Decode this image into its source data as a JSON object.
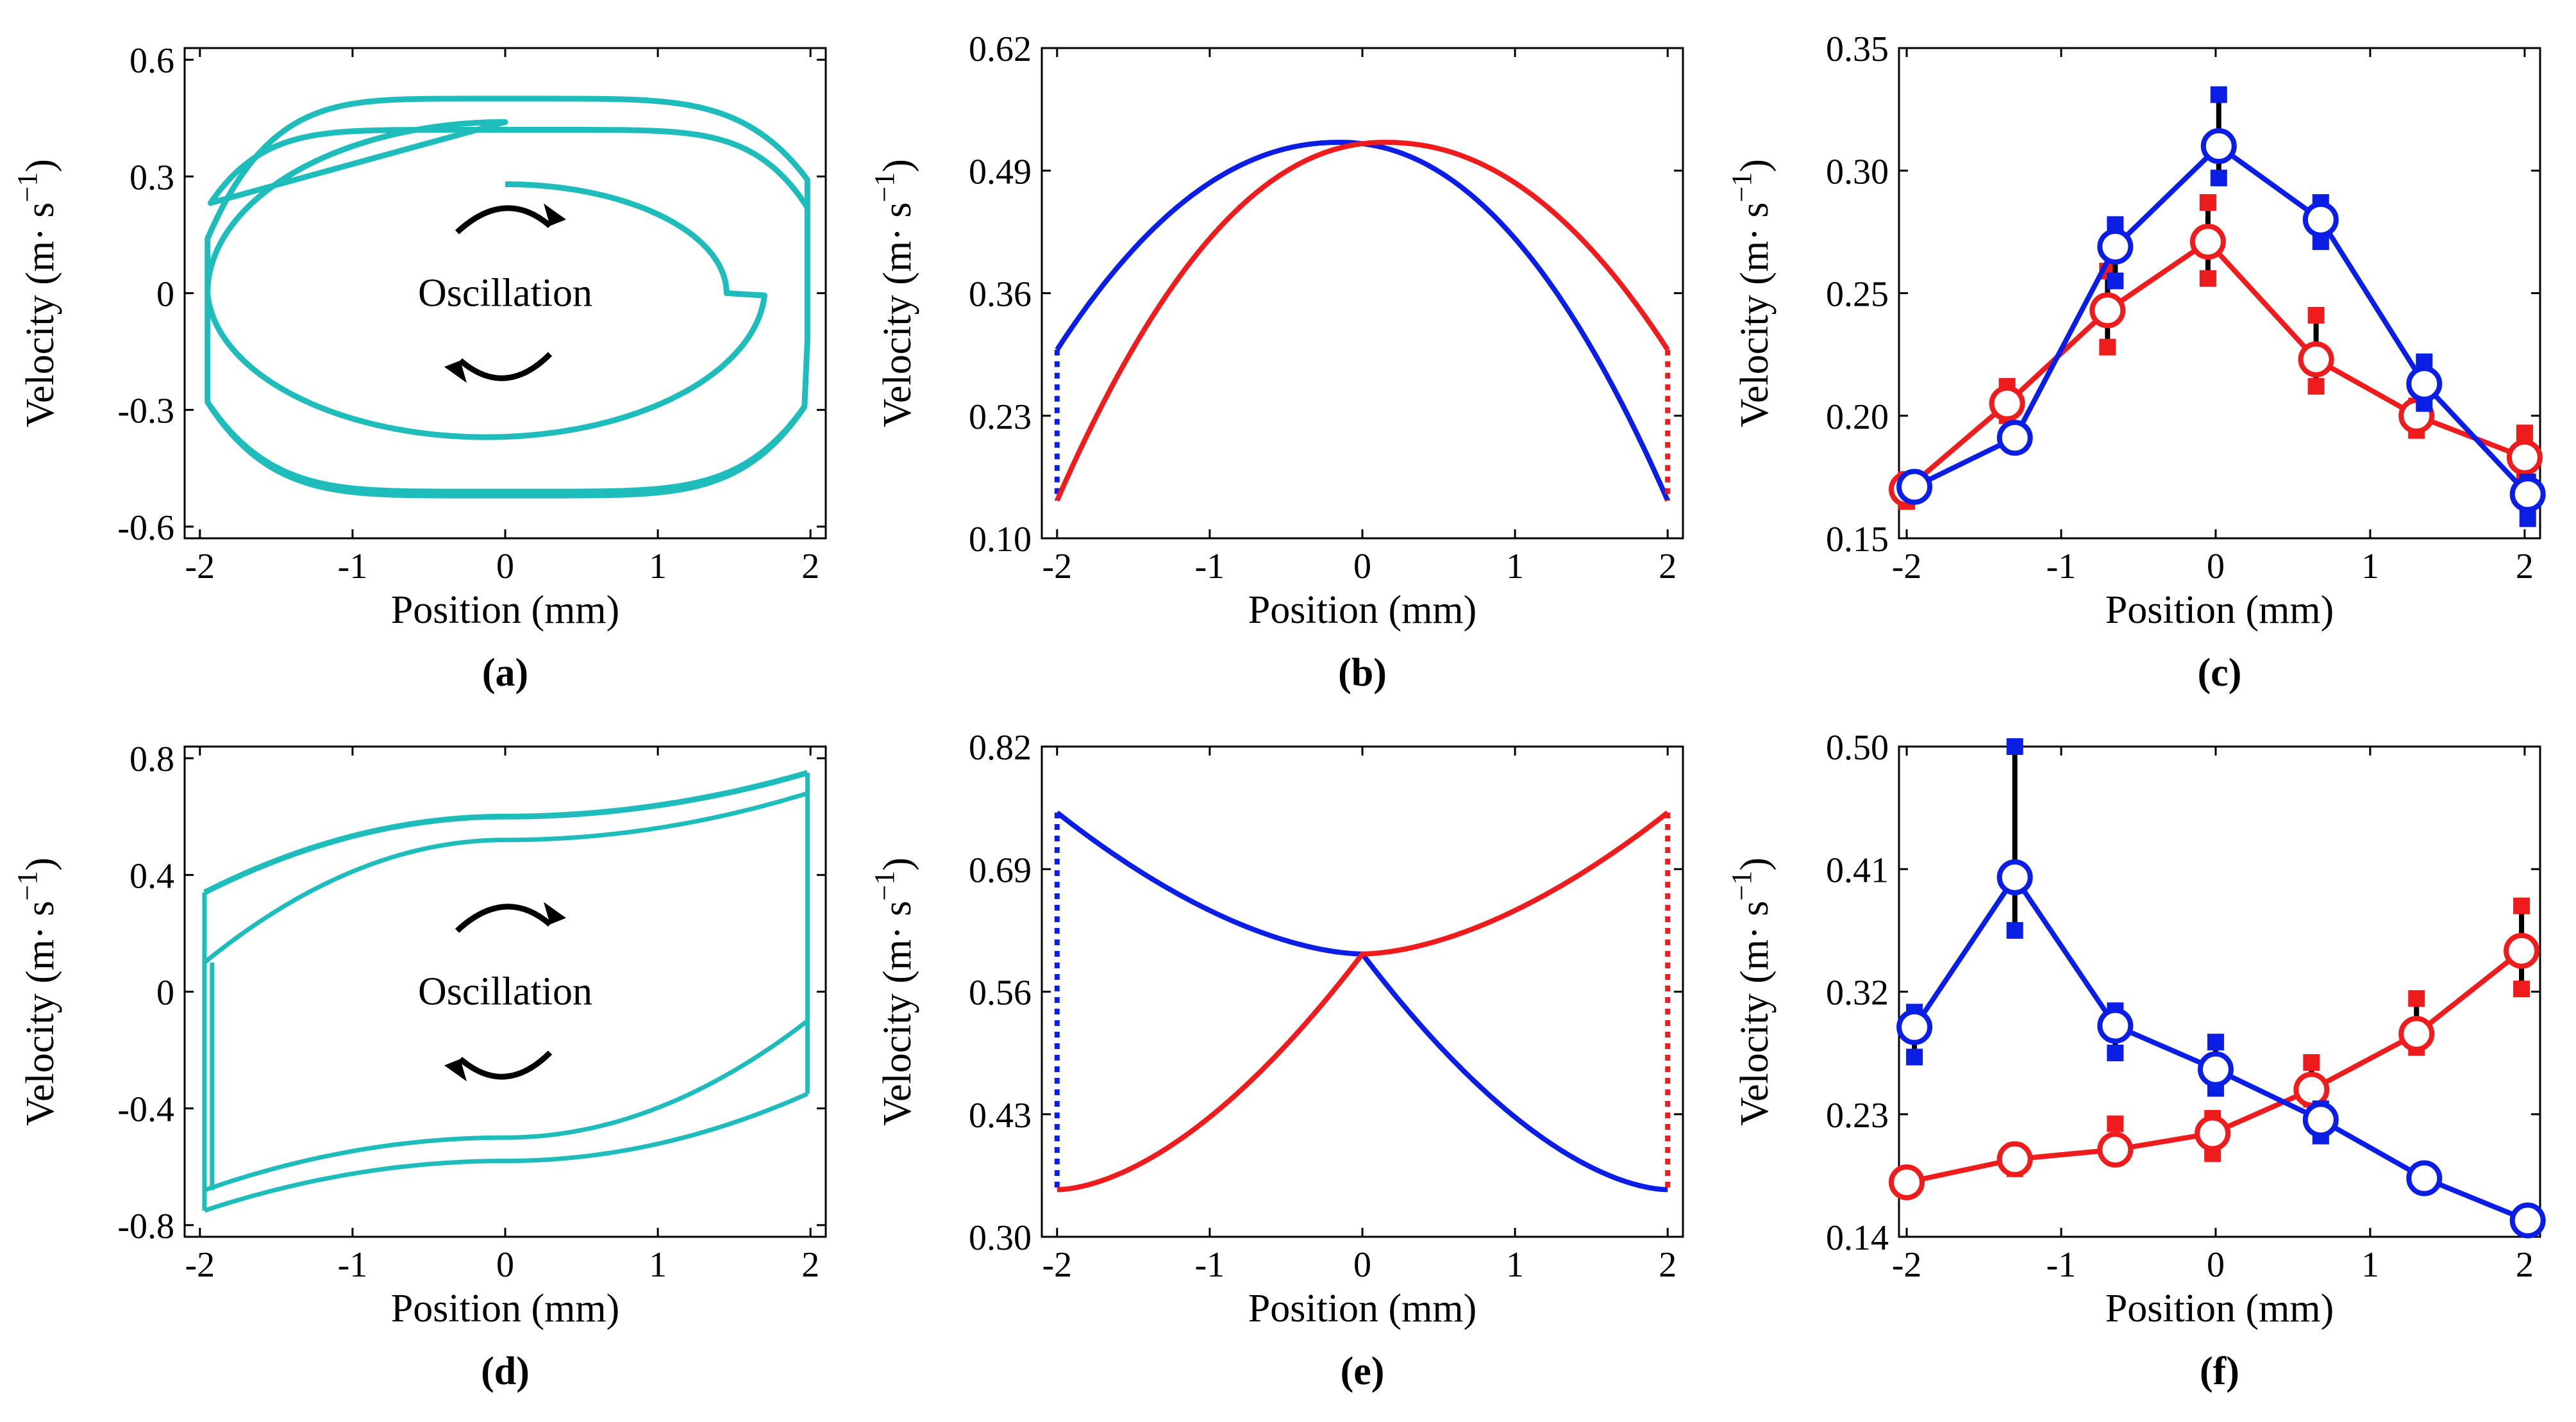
{
  "figure": {
    "colors": {
      "cyan": "#1fbcbc",
      "blue": "#0a1ee6",
      "red": "#ee1c1c",
      "black": "#000000"
    }
  },
  "chart_data": [
    {
      "id": "a",
      "type": "line",
      "panel_label": "(a)",
      "annotation": "Oscillation",
      "xlabel": "Position (mm)",
      "ylabel_main": "Velocity (m· s",
      "ylabel_exp": "−1",
      "ylabel_close": ")",
      "xlim": [
        -2.1,
        2.1
      ],
      "ylim": [
        -0.63,
        0.63
      ],
      "xticks": [
        -2,
        -1,
        0,
        1,
        2
      ],
      "xtick_labels": [
        "-2",
        "-1",
        "0",
        "1",
        "2"
      ],
      "yticks": [
        -0.6,
        -0.3,
        0,
        0.3,
        0.6
      ],
      "ytick_labels": [
        "-0.6",
        "-0.3",
        "0",
        "0.3",
        "0.6"
      ],
      "series": [
        {
          "name": "phase trajectory",
          "color": "#1fbcbc",
          "kind": "spiral",
          "start": [
            0.0,
            0.28
          ],
          "peak_velocity": 0.5,
          "trough_velocity": -0.52,
          "turn_position_inner": 1.45,
          "turn_position_outer_left": -1.95,
          "wall_position": 1.98,
          "wall_velocity_top": 0.29,
          "wall_velocity_bottom": -0.12,
          "left_jump_top": 0.14,
          "left_jump_bottom": -0.28
        }
      ]
    },
    {
      "id": "b",
      "type": "line",
      "panel_label": "(b)",
      "xlabel": "Position (mm)",
      "ylabel_main": "Velocity (m· s",
      "ylabel_exp": "−1",
      "ylabel_close": ")",
      "xlim": [
        -2.1,
        2.1
      ],
      "ylim": [
        0.1,
        0.62
      ],
      "xticks": [
        -2,
        -1,
        0,
        1,
        2
      ],
      "xtick_labels": [
        "-2",
        "-1",
        "0",
        "1",
        "2"
      ],
      "yticks": [
        0.1,
        0.23,
        0.36,
        0.49,
        0.62
      ],
      "ytick_labels": [
        "0.10",
        "0.23",
        "0.36",
        "0.49",
        "0.62"
      ],
      "series": [
        {
          "name": "blue",
          "color": "#0a1ee6",
          "kind": "dome",
          "peak_x": -0.15,
          "peak_y": 0.52,
          "x_start": -2,
          "y_start": 0.3,
          "x_end": 2,
          "y_end": 0.14,
          "dotted_jump_x": -2,
          "dotted_jump_from": 0.3,
          "dotted_jump_to": 0.14
        },
        {
          "name": "red",
          "color": "#ee1c1c",
          "kind": "dome",
          "peak_x": 0.15,
          "peak_y": 0.52,
          "x_start": -2,
          "y_start": 0.14,
          "x_end": 2,
          "y_end": 0.3,
          "dotted_jump_x": 2,
          "dotted_jump_from": 0.3,
          "dotted_jump_to": 0.14
        }
      ]
    },
    {
      "id": "c",
      "type": "scatter",
      "panel_label": "(c)",
      "xlabel": "Position (mm)",
      "ylabel_main": "Velocity (m· s",
      "ylabel_exp": "−1",
      "ylabel_close": ")",
      "xlim": [
        -2.05,
        2.1
      ],
      "ylim": [
        0.15,
        0.35
      ],
      "xticks": [
        -2,
        -1,
        0,
        1,
        2
      ],
      "xtick_labels": [
        "-2",
        "-1",
        "0",
        "1",
        "2"
      ],
      "yticks": [
        0.15,
        0.2,
        0.25,
        0.3,
        0.35
      ],
      "ytick_labels": [
        "0.15",
        "0.20",
        "0.25",
        "0.30",
        "0.35"
      ],
      "series": [
        {
          "name": "blue",
          "color": "#0a1ee6",
          "x": [
            -1.95,
            -1.3,
            -0.65,
            0.02,
            0.68,
            1.35,
            2.02
          ],
          "y": [
            0.171,
            0.191,
            0.269,
            0.31,
            0.28,
            0.213,
            0.168
          ],
          "err_low": [
            0.17,
            0.191,
            0.255,
            0.297,
            0.271,
            0.205,
            0.158
          ],
          "err_high": [
            0.173,
            0.191,
            0.278,
            0.331,
            0.287,
            0.222,
            0.173
          ]
        },
        {
          "name": "red",
          "color": "#ee1c1c",
          "x": [
            -2.0,
            -1.35,
            -0.7,
            -0.05,
            0.65,
            1.3,
            2.0
          ],
          "y": [
            0.17,
            0.205,
            0.243,
            0.271,
            0.223,
            0.2,
            0.183
          ],
          "err_low": [
            0.165,
            0.2,
            0.228,
            0.256,
            0.212,
            0.194,
            0.177
          ],
          "err_high": [
            0.174,
            0.212,
            0.259,
            0.287,
            0.241,
            0.204,
            0.193
          ]
        }
      ]
    },
    {
      "id": "d",
      "type": "line",
      "panel_label": "(d)",
      "annotation": "Oscillation",
      "xlabel": "Position (mm)",
      "ylabel_main": "Velocity (m· s",
      "ylabel_exp": "−1",
      "ylabel_close": ")",
      "xlim": [
        -2.1,
        2.1
      ],
      "ylim": [
        -0.84,
        0.84
      ],
      "xticks": [
        -2,
        -1,
        0,
        1,
        2
      ],
      "xtick_labels": [
        "-2",
        "-1",
        "0",
        "1",
        "2"
      ],
      "yticks": [
        -0.8,
        -0.4,
        0,
        0.4,
        0.8
      ],
      "ytick_labels": [
        "-0.8",
        "-0.4",
        "0",
        "0.4",
        "0.8"
      ],
      "series": [
        {
          "name": "phase trajectory",
          "color": "#1fbcbc",
          "kind": "loop",
          "outer_top_left": 0.34,
          "outer_top_mid": 0.6,
          "outer_top_right": 0.75,
          "inner_top_left": 0.1,
          "inner_top_mid": 0.52,
          "inner_top_right": 0.68,
          "outer_bottom_left": -0.75,
          "outer_bottom_mid": -0.58,
          "outer_bottom_right": -0.35,
          "inner_bottom_left": -0.68,
          "inner_bottom_mid": -0.5,
          "inner_bottom_right": -0.1
        }
      ]
    },
    {
      "id": "e",
      "type": "line",
      "panel_label": "(e)",
      "xlabel": "Position (mm)",
      "ylabel_main": "Velocity (m· s",
      "ylabel_exp": "−1",
      "ylabel_close": ")",
      "xlim": [
        -2.1,
        2.1
      ],
      "ylim": [
        0.3,
        0.82
      ],
      "xticks": [
        -2,
        -1,
        0,
        1,
        2
      ],
      "xtick_labels": [
        "-2",
        "-1",
        "0",
        "1",
        "2"
      ],
      "yticks": [
        0.3,
        0.43,
        0.56,
        0.69,
        0.82
      ],
      "ytick_labels": [
        "0.30",
        "0.43",
        "0.56",
        "0.69",
        "0.82"
      ],
      "series": [
        {
          "name": "blue",
          "color": "#0a1ee6",
          "kind": "valley",
          "mid_x": 0,
          "mid_y": 0.6,
          "x_start": -2,
          "y_start": 0.75,
          "x_end": 2,
          "y_end": 0.35,
          "dotted_jump_x": -2,
          "dotted_jump_from": 0.75,
          "dotted_jump_to": 0.35
        },
        {
          "name": "red",
          "color": "#ee1c1c",
          "kind": "valley",
          "mid_x": 0,
          "mid_y": 0.6,
          "x_start": -2,
          "y_start": 0.35,
          "x_end": 2,
          "y_end": 0.75,
          "dotted_jump_x": 2,
          "dotted_jump_from": 0.75,
          "dotted_jump_to": 0.35
        }
      ]
    },
    {
      "id": "f",
      "type": "scatter",
      "panel_label": "(f)",
      "xlabel": "Position (mm)",
      "ylabel_main": "Velocity (m· s",
      "ylabel_exp": "−1",
      "ylabel_close": ")",
      "xlim": [
        -2.05,
        2.1
      ],
      "ylim": [
        0.14,
        0.5
      ],
      "xticks": [
        -2,
        -1,
        0,
        1,
        2
      ],
      "xtick_labels": [
        "-2",
        "-1",
        "0",
        "1",
        "2"
      ],
      "yticks": [
        0.14,
        0.23,
        0.32,
        0.41,
        0.5
      ],
      "ytick_labels": [
        "0.14",
        "0.23",
        "0.32",
        "0.41",
        "0.50"
      ],
      "series": [
        {
          "name": "blue",
          "color": "#0a1ee6",
          "x": [
            -1.95,
            -1.3,
            -0.65,
            0.0,
            0.68,
            1.35,
            2.02
          ],
          "y": [
            0.294,
            0.404,
            0.295,
            0.263,
            0.226,
            0.183,
            0.152
          ],
          "err_low": [
            0.272,
            0.365,
            0.275,
            0.249,
            0.214,
            0.183,
            0.152
          ],
          "err_high": [
            0.305,
            0.5,
            0.306,
            0.283,
            0.234,
            0.183,
            0.152
          ]
        },
        {
          "name": "red",
          "color": "#ee1c1c",
          "x": [
            -2.0,
            -1.3,
            -0.65,
            -0.02,
            0.62,
            1.3,
            1.98
          ],
          "y": [
            0.18,
            0.197,
            0.204,
            0.216,
            0.248,
            0.289,
            0.35
          ],
          "err_low": [
            0.178,
            0.19,
            0.198,
            0.201,
            0.241,
            0.279,
            0.322
          ],
          "err_high": [
            0.183,
            0.203,
            0.223,
            0.227,
            0.268,
            0.315,
            0.383
          ]
        }
      ]
    }
  ]
}
